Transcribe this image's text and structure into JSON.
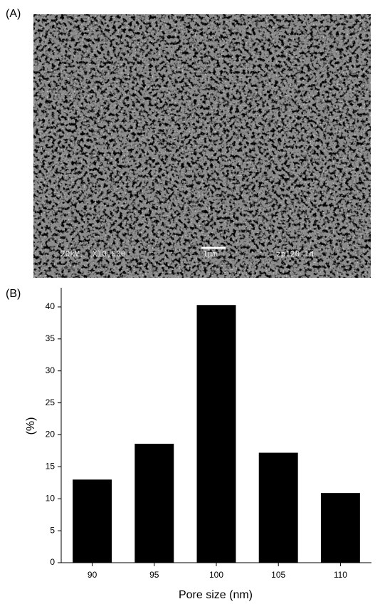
{
  "panel_a": {
    "label": "(A)",
    "image_text": [
      "20kV",
      "X10,000",
      "1μm",
      "zp120-1d"
    ]
  },
  "panel_b": {
    "label": "(B)"
  },
  "chart_data": {
    "type": "bar",
    "categories": [
      "90",
      "95",
      "100",
      "105",
      "110"
    ],
    "values": [
      13,
      18.6,
      40.3,
      17.2,
      10.9
    ],
    "color": "#000000",
    "ylim": [
      0,
      43
    ],
    "yticks": [
      0,
      5,
      10,
      15,
      20,
      25,
      30,
      35,
      40
    ],
    "xlabel": "Pore size (nm)",
    "ylabel": "(%)",
    "grid": false
  }
}
